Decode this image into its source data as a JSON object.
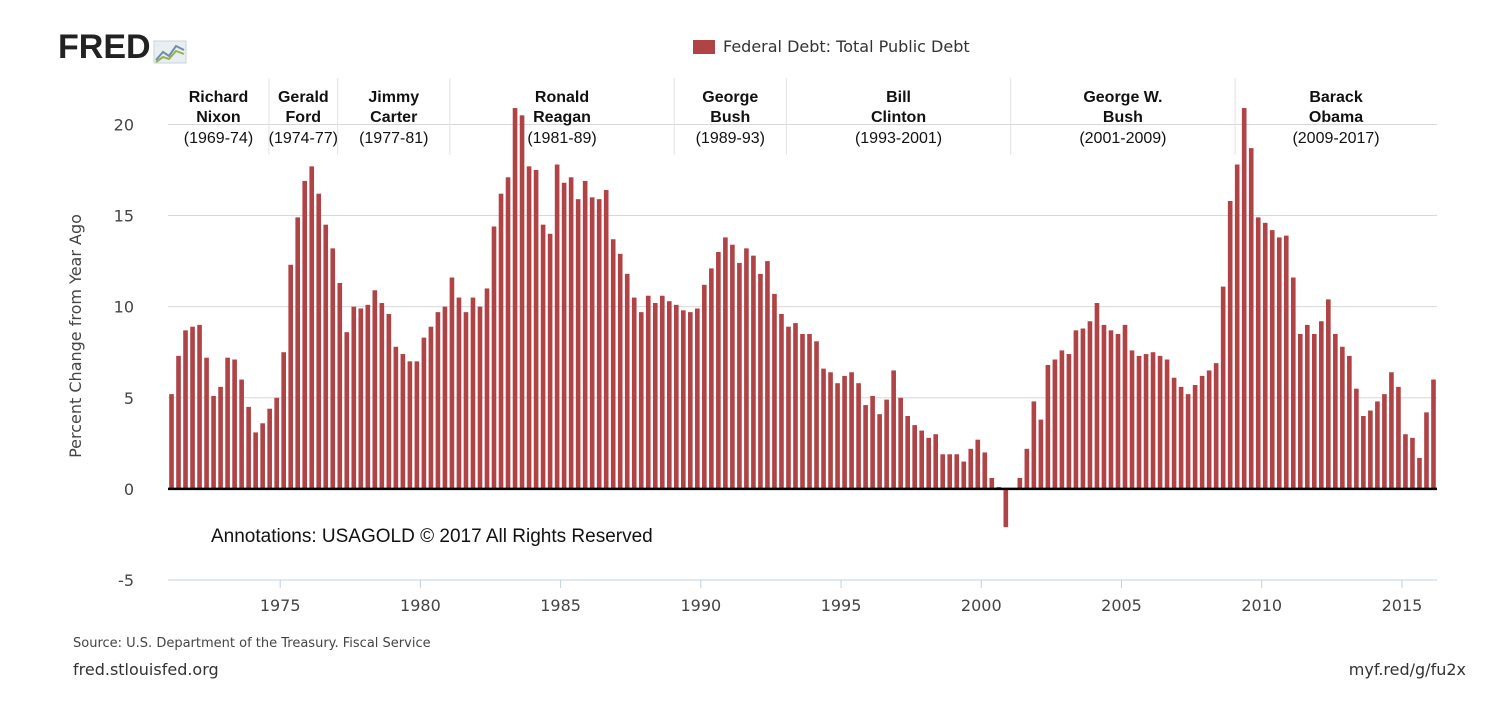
{
  "logo": {
    "text": "FRED",
    "icon": "fred-graph-icon"
  },
  "legend": {
    "label": "Federal Debt: Total Public Debt",
    "color": "#b04346"
  },
  "footer": {
    "source": "Source: U.S. Department of the Treasury. Fiscal Service",
    "site": "fred.stlouisfed.org",
    "shortlink": "myf.red/g/fu2x"
  },
  "chart_data": {
    "type": "bar",
    "title": "",
    "xlabel": "",
    "ylabel": "Percent Change from Year Ago",
    "ylim": [
      -5,
      22
    ],
    "yticks": [
      -5,
      0,
      5,
      10,
      15,
      20
    ],
    "xticks": [
      1975,
      1980,
      1985,
      1990,
      1995,
      2000,
      2005,
      2010,
      2015
    ],
    "grid": true,
    "bar_color": "#b04346",
    "annotation": "Annotations:  USAGOLD © 2017 All Rights Reserved",
    "presidents": [
      {
        "first": "Richard",
        "last": "Nixon",
        "term": "(1969-74)",
        "start": 1969.0,
        "end": 1974.6
      },
      {
        "first": "Gerald",
        "last": "Ford",
        "term": "(1974-77)",
        "start": 1974.6,
        "end": 1977.05
      },
      {
        "first": "Jimmy",
        "last": "Carter",
        "term": "(1977-81)",
        "start": 1977.05,
        "end": 1981.05
      },
      {
        "first": "Ronald",
        "last": "Reagan",
        "term": "(1981-89)",
        "start": 1981.05,
        "end": 1989.05
      },
      {
        "first": "George",
        "last": "Bush",
        "term": "(1989-93)",
        "start": 1989.05,
        "end": 1993.05
      },
      {
        "first": "Bill",
        "last": "Clinton",
        "term": "(1993-2001)",
        "start": 1993.05,
        "end": 2001.05
      },
      {
        "first": "George W.",
        "last": "Bush",
        "term": "(2001-2009)",
        "start": 2001.05,
        "end": 2009.05
      },
      {
        "first": "Barack",
        "last": "Obama",
        "term": "(2009-2017)",
        "start": 2009.05,
        "end": 2016.25
      }
    ],
    "x_start": "1971-Q1",
    "x_frequency": "quarterly",
    "values": [
      5.2,
      7.3,
      8.7,
      8.9,
      9.0,
      7.2,
      5.1,
      5.6,
      7.2,
      7.1,
      6.0,
      4.5,
      3.1,
      3.6,
      4.4,
      5.0,
      7.5,
      12.3,
      14.9,
      16.9,
      17.7,
      16.2,
      14.5,
      13.2,
      11.3,
      8.6,
      10.0,
      9.9,
      10.1,
      10.9,
      10.2,
      9.6,
      7.8,
      7.4,
      7.0,
      7.0,
      8.3,
      8.9,
      9.7,
      10.0,
      11.6,
      10.5,
      9.7,
      10.5,
      10.0,
      11.0,
      14.4,
      16.2,
      17.1,
      20.9,
      20.5,
      17.7,
      17.5,
      14.5,
      14.0,
      17.8,
      16.8,
      17.1,
      15.9,
      16.9,
      16.0,
      15.9,
      16.4,
      13.7,
      12.9,
      11.8,
      10.5,
      9.7,
      10.6,
      10.2,
      10.6,
      10.3,
      10.1,
      9.8,
      9.7,
      9.9,
      11.2,
      12.1,
      13.0,
      13.8,
      13.4,
      12.4,
      13.2,
      12.8,
      11.8,
      12.5,
      10.7,
      9.6,
      8.9,
      9.1,
      8.5,
      8.5,
      8.1,
      6.6,
      6.4,
      5.8,
      6.2,
      6.4,
      5.8,
      4.6,
      5.1,
      4.1,
      4.9,
      6.5,
      5.0,
      4.0,
      3.5,
      3.2,
      2.8,
      3.0,
      1.9,
      1.9,
      1.9,
      1.5,
      2.2,
      2.7,
      2.0,
      0.6,
      0.1,
      -2.1,
      0.0,
      0.6,
      2.2,
      4.8,
      3.8,
      6.8,
      7.1,
      7.6,
      7.4,
      8.7,
      8.8,
      9.2,
      10.2,
      9.0,
      8.7,
      8.5,
      9.0,
      7.6,
      7.3,
      7.4,
      7.5,
      7.3,
      7.1,
      6.1,
      5.6,
      5.2,
      5.7,
      6.2,
      6.5,
      6.9,
      11.1,
      15.8,
      17.8,
      20.9,
      18.7,
      14.9,
      14.6,
      14.2,
      13.8,
      13.9,
      11.6,
      8.5,
      9.0,
      8.5,
      9.2,
      10.4,
      8.5,
      7.8,
      7.3,
      5.5,
      4.0,
      4.3,
      4.8,
      5.2,
      6.4,
      5.6,
      3.0,
      2.8,
      1.7,
      4.2,
      6.0
    ]
  }
}
